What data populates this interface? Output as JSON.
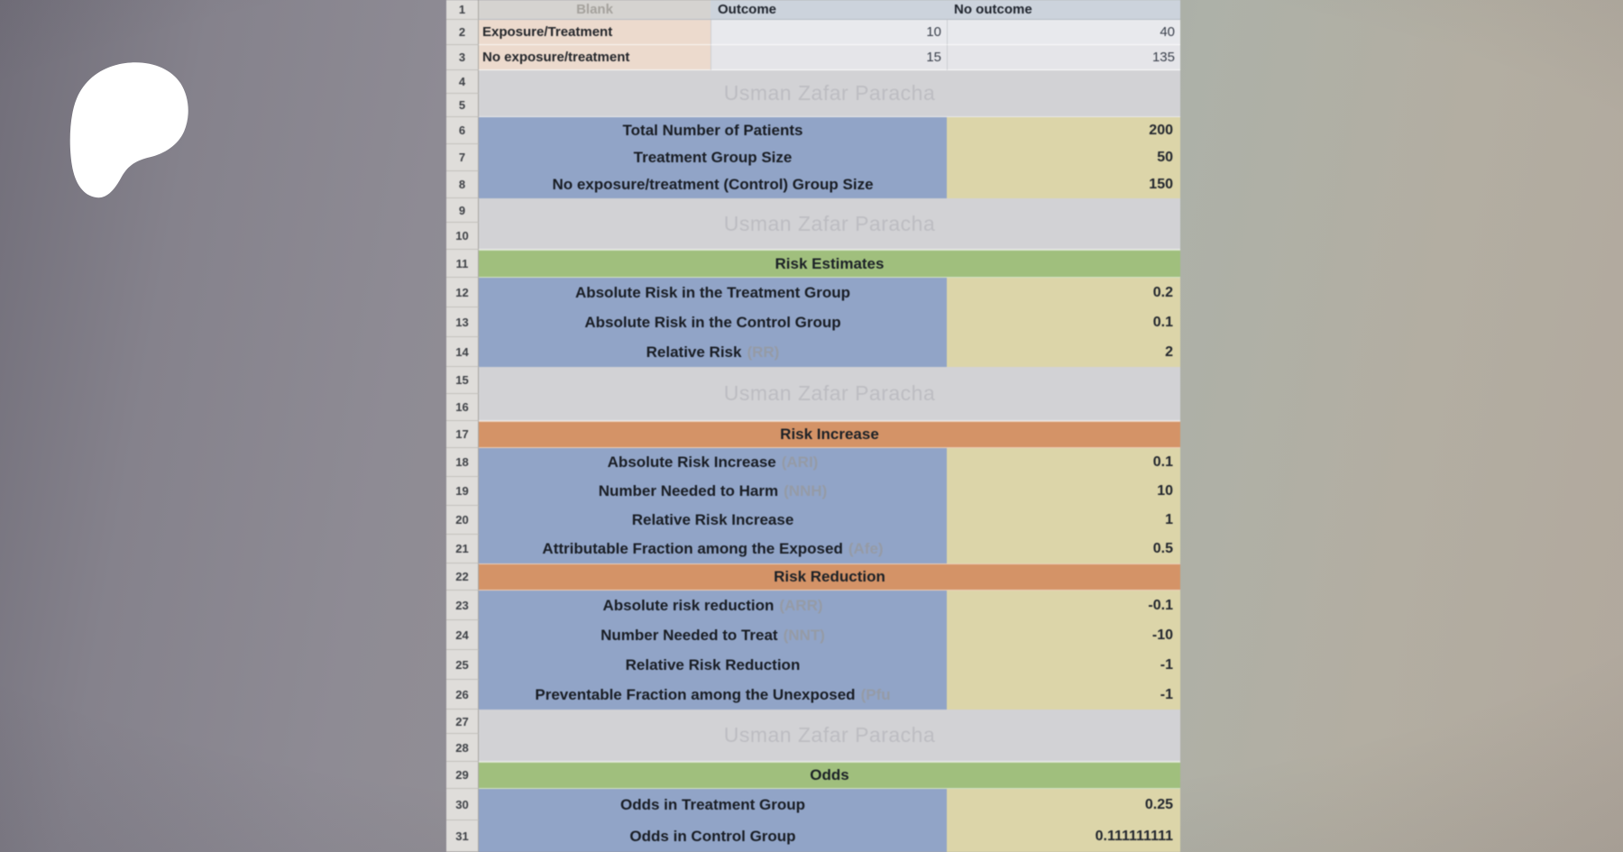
{
  "watermark_text": "Usman Zafar Paracha",
  "row_numbers": [
    "1",
    "2",
    "3",
    "4",
    "5",
    "6",
    "7",
    "8",
    "9",
    "10",
    "11",
    "12",
    "13",
    "14",
    "15",
    "16",
    "17",
    "18",
    "19",
    "20",
    "21",
    "22",
    "23",
    "24",
    "25",
    "26",
    "27",
    "28",
    "29",
    "30",
    "31"
  ],
  "logo": {
    "name": "patreon-logo",
    "color": "#ffffff"
  },
  "colors": {
    "label_blue": "#91a4c7",
    "value_beige": "#dcd5a9",
    "section_green": "#a0bf7d",
    "section_orange": "#d49367",
    "contingency_pink": "#ecdacd",
    "header_bluegray": "#ccd3dc",
    "watermark_band": "#d2d2d5"
  },
  "sheet": {
    "rows": [
      {
        "kind": "head",
        "cells": [
          "Blank",
          "Outcome",
          "No outcome"
        ]
      },
      {
        "kind": "contingency",
        "label": "Exposure/Treatment",
        "values": [
          "10",
          "40"
        ]
      },
      {
        "kind": "contingency",
        "label": "No exposure/treatment",
        "values": [
          "15",
          "135"
        ]
      },
      {
        "kind": "watermark"
      },
      {
        "kind": "item",
        "label": "Total Number of Patients",
        "value": "200"
      },
      {
        "kind": "item",
        "label": "Treatment Group Size",
        "value": "50"
      },
      {
        "kind": "item",
        "label": "No exposure/treatment (Control) Group Size",
        "value": "150"
      },
      {
        "kind": "watermark"
      },
      {
        "kind": "section",
        "title": "Risk Estimates",
        "color": "green"
      },
      {
        "kind": "item",
        "label": "Absolute Risk in the Treatment Group",
        "value": "0.2"
      },
      {
        "kind": "item",
        "label": "Absolute Risk in the Control Group",
        "value": "0.1"
      },
      {
        "kind": "item",
        "label": "Relative Risk",
        "suffix": "(RR)",
        "value": "2"
      },
      {
        "kind": "watermark"
      },
      {
        "kind": "section",
        "title": "Risk Increase",
        "color": "orange"
      },
      {
        "kind": "item",
        "label": "Absolute Risk Increase",
        "suffix": "(ARI)",
        "value": "0.1"
      },
      {
        "kind": "item",
        "label": "Number Needed to Harm",
        "suffix": "(NNH)",
        "value": "10"
      },
      {
        "kind": "item",
        "label": "Relative Risk Increase",
        "value": "1"
      },
      {
        "kind": "item",
        "label": "Attributable Fraction among the Exposed",
        "suffix": "(Afe)",
        "value": "0.5"
      },
      {
        "kind": "section",
        "title": "Risk Reduction",
        "color": "orange"
      },
      {
        "kind": "item",
        "label": "Absolute risk reduction",
        "suffix": "(ARR)",
        "value": "-0.1"
      },
      {
        "kind": "item",
        "label": "Number Needed to Treat",
        "suffix": "(NNT)",
        "value": "-10"
      },
      {
        "kind": "item",
        "label": "Relative Risk Reduction",
        "value": "-1"
      },
      {
        "kind": "item",
        "label": "Preventable Fraction among the Unexposed",
        "suffix": "(Pfu",
        "value": "-1"
      },
      {
        "kind": "watermark"
      },
      {
        "kind": "section",
        "title": "Odds",
        "color": "green"
      },
      {
        "kind": "item",
        "label": "Odds in Treatment Group",
        "value": "0.25"
      },
      {
        "kind": "item",
        "label": "Odds in Control Group",
        "value": "0.111111111"
      }
    ]
  }
}
